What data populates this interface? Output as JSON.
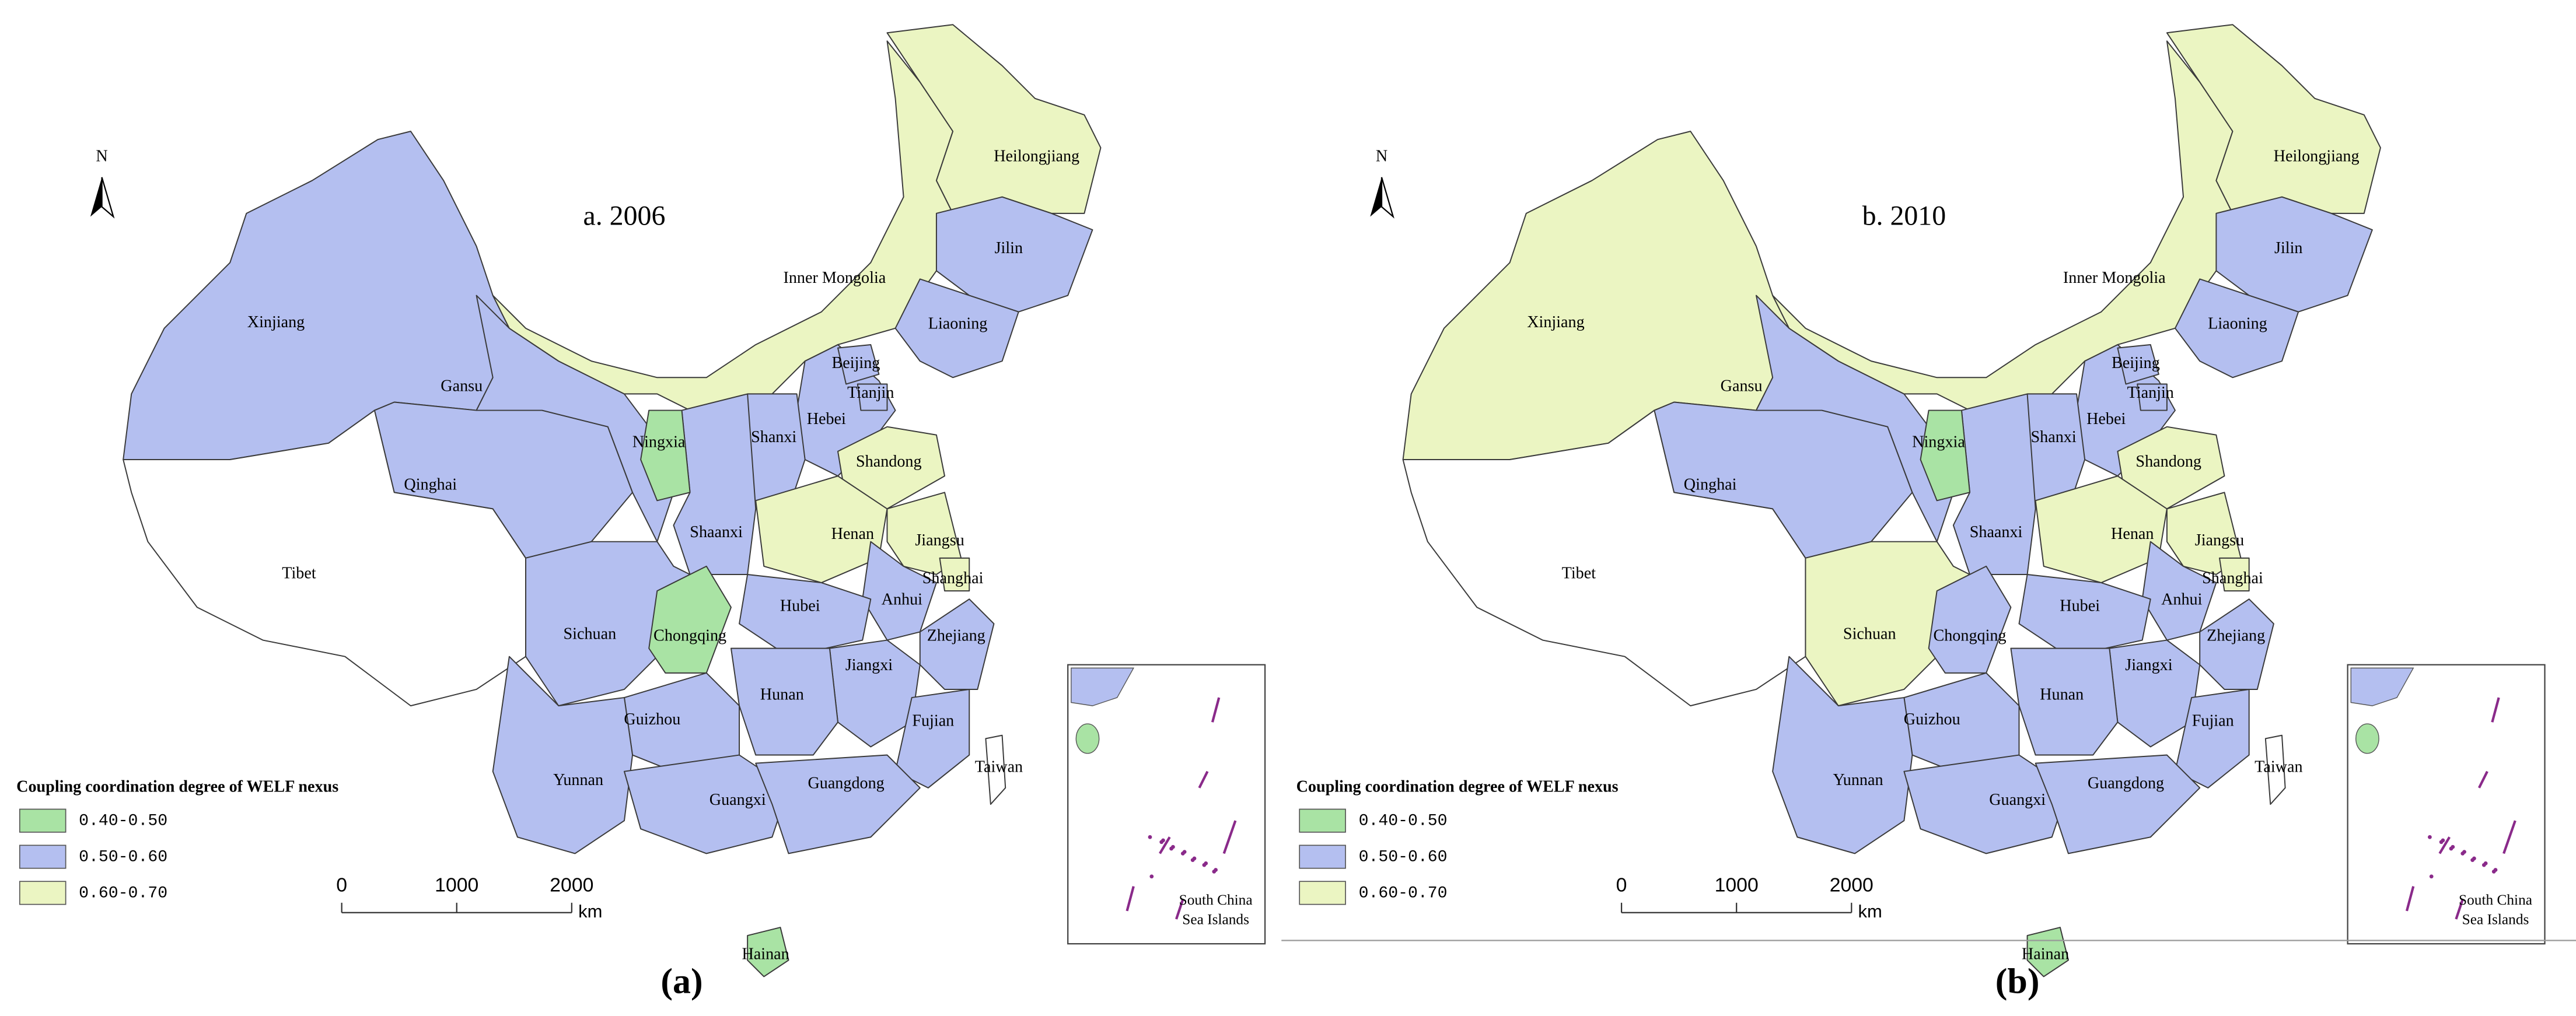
{
  "provinces": [
    "Xinjiang",
    "Tibet",
    "Qinghai",
    "Gansu",
    "Inner Mongolia",
    "Heilongjiang",
    "Jilin",
    "Liaoning",
    "Hebei",
    "Beijing",
    "Tianjin",
    "Shanxi",
    "Shandong",
    "Shaanxi",
    "Ningxia",
    "Henan",
    "Jiangsu",
    "Shanghai",
    "Anhui",
    "Hubei",
    "Sichuan",
    "Chongqing",
    "Zhejiang",
    "Jiangxi",
    "Hunan",
    "Guizhou",
    "Fujian",
    "Yunnan",
    "Guangxi",
    "Guangdong",
    "Hainan",
    "Taiwan"
  ],
  "legend": {
    "title": "Coupling coordination degree of WELF nexus",
    "items": [
      {
        "label": "0.40-0.50",
        "color": "#a9e3a4"
      },
      {
        "label": "0.50-0.60",
        "color": "#b4bff0"
      },
      {
        "label": "0.60-0.70",
        "color": "#ebf5c2"
      }
    ]
  },
  "north": "N",
  "scale": {
    "ticks": [
      "0",
      "1000",
      "2000"
    ],
    "unit": "km"
  },
  "inset": {
    "lines": [
      "South China",
      "Sea Islands"
    ]
  },
  "panels": [
    {
      "title": "a. 2006",
      "caption": "(a)",
      "classes": [
        1,
        null,
        1,
        1,
        2,
        2,
        1,
        1,
        1,
        1,
        1,
        1,
        2,
        1,
        0,
        2,
        2,
        2,
        1,
        1,
        1,
        0,
        1,
        1,
        1,
        1,
        1,
        1,
        1,
        1,
        0,
        null
      ]
    },
    {
      "title": "b. 2010",
      "caption": "(b)",
      "classes": [
        2,
        null,
        1,
        1,
        2,
        2,
        1,
        1,
        1,
        1,
        1,
        1,
        2,
        1,
        0,
        2,
        2,
        2,
        1,
        1,
        2,
        1,
        1,
        1,
        1,
        1,
        1,
        1,
        1,
        1,
        0,
        null
      ]
    }
  ]
}
